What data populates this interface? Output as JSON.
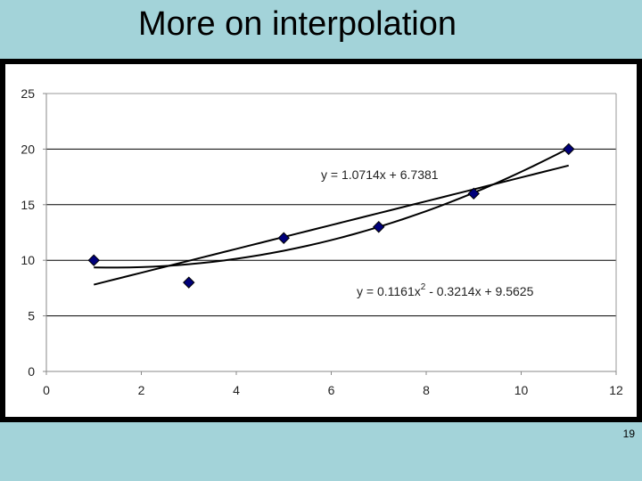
{
  "slide": {
    "title": "More on interpolation",
    "page_number": "19"
  },
  "chart_data": {
    "type": "scatter",
    "title": "",
    "xlabel": "",
    "ylabel": "",
    "xlim": [
      0,
      12
    ],
    "ylim": [
      0,
      25
    ],
    "x_ticks": [
      0,
      2,
      4,
      6,
      8,
      10,
      12
    ],
    "y_ticks": [
      0,
      5,
      10,
      15,
      20,
      25
    ],
    "grid": "horizontal",
    "legend": "none",
    "series": [
      {
        "x": [
          1,
          3,
          5,
          7,
          9,
          11
        ],
        "values": [
          10,
          8,
          12,
          13,
          16,
          20
        ],
        "marker": "diamond",
        "color": "#00007a"
      }
    ],
    "trendlines": [
      {
        "kind": "linear",
        "coefficients": [
          1.0714,
          6.7381
        ],
        "equation": "y = 1.0714x + 6.7381",
        "x_range": [
          1,
          11
        ]
      },
      {
        "kind": "polynomial",
        "coefficients": [
          0.1161,
          -0.3214,
          9.5625
        ],
        "equation_lhs": "y = 0.1161x",
        "equation_sup": "2",
        "equation_rhs": " - 0.3214x + 9.5625",
        "x_range": [
          1,
          11
        ]
      }
    ]
  }
}
